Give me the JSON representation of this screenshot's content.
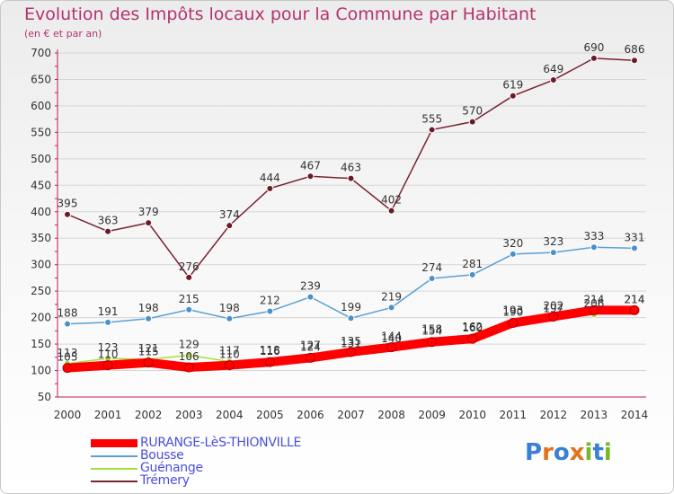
{
  "header": {
    "title": "Evolution des Impôts locaux pour la Commune par Habitant",
    "subtitle": "(en € et par an)"
  },
  "logo": {
    "text": "Proxiti",
    "letters": [
      "P",
      "r",
      "o",
      "x",
      "i",
      "t",
      "i"
    ],
    "colors": [
      "#3a7fd8",
      "#e2731c",
      "#3a7fd8",
      "#e2731c",
      "#76b82a",
      "#3a7fd8",
      "#76b82a"
    ]
  },
  "chart_data": {
    "type": "line",
    "title": "Evolution des Impôts locaux pour la Commune par Habitant",
    "subtitle": "(en € et par an)",
    "x": [
      2000,
      2001,
      2002,
      2003,
      2004,
      2005,
      2006,
      2007,
      2008,
      2009,
      2010,
      2011,
      2012,
      2013,
      2014
    ],
    "yticks": [
      50,
      100,
      150,
      200,
      250,
      300,
      350,
      400,
      450,
      500,
      550,
      600,
      650,
      700
    ],
    "ylim": [
      50,
      700
    ],
    "grid": true,
    "legend_position": "bottom-left",
    "series": [
      {
        "name": "RURANGE-LèS-THIONVILLE",
        "color": "#ff0000",
        "marker_color": "#ff0000",
        "thick": true,
        "values": [
          105,
          110,
          115,
          106,
          110,
          116,
          124,
          135,
          144,
          154,
          160,
          190,
          202,
          214,
          214
        ]
      },
      {
        "name": "Bousse",
        "color": "#5aa0d4",
        "marker_color": "#4a90c9",
        "values": [
          188,
          191,
          198,
          215,
          198,
          212,
          239,
          199,
          219,
          274,
          281,
          320,
          323,
          333,
          331
        ]
      },
      {
        "name": "Guénange",
        "color": "#a6e03a",
        "marker_color": "#9cd22f",
        "values": [
          113,
          123,
          121,
          129,
          117,
          118,
          127,
          131,
          140,
          158,
          162,
          193,
          197,
          206,
          214
        ]
      },
      {
        "name": "Trémery",
        "color": "#7a2230",
        "marker_color": "#6b1a28",
        "values": [
          395,
          363,
          379,
          276,
          374,
          444,
          467,
          463,
          402,
          555,
          570,
          619,
          649,
          690,
          686
        ]
      }
    ]
  }
}
